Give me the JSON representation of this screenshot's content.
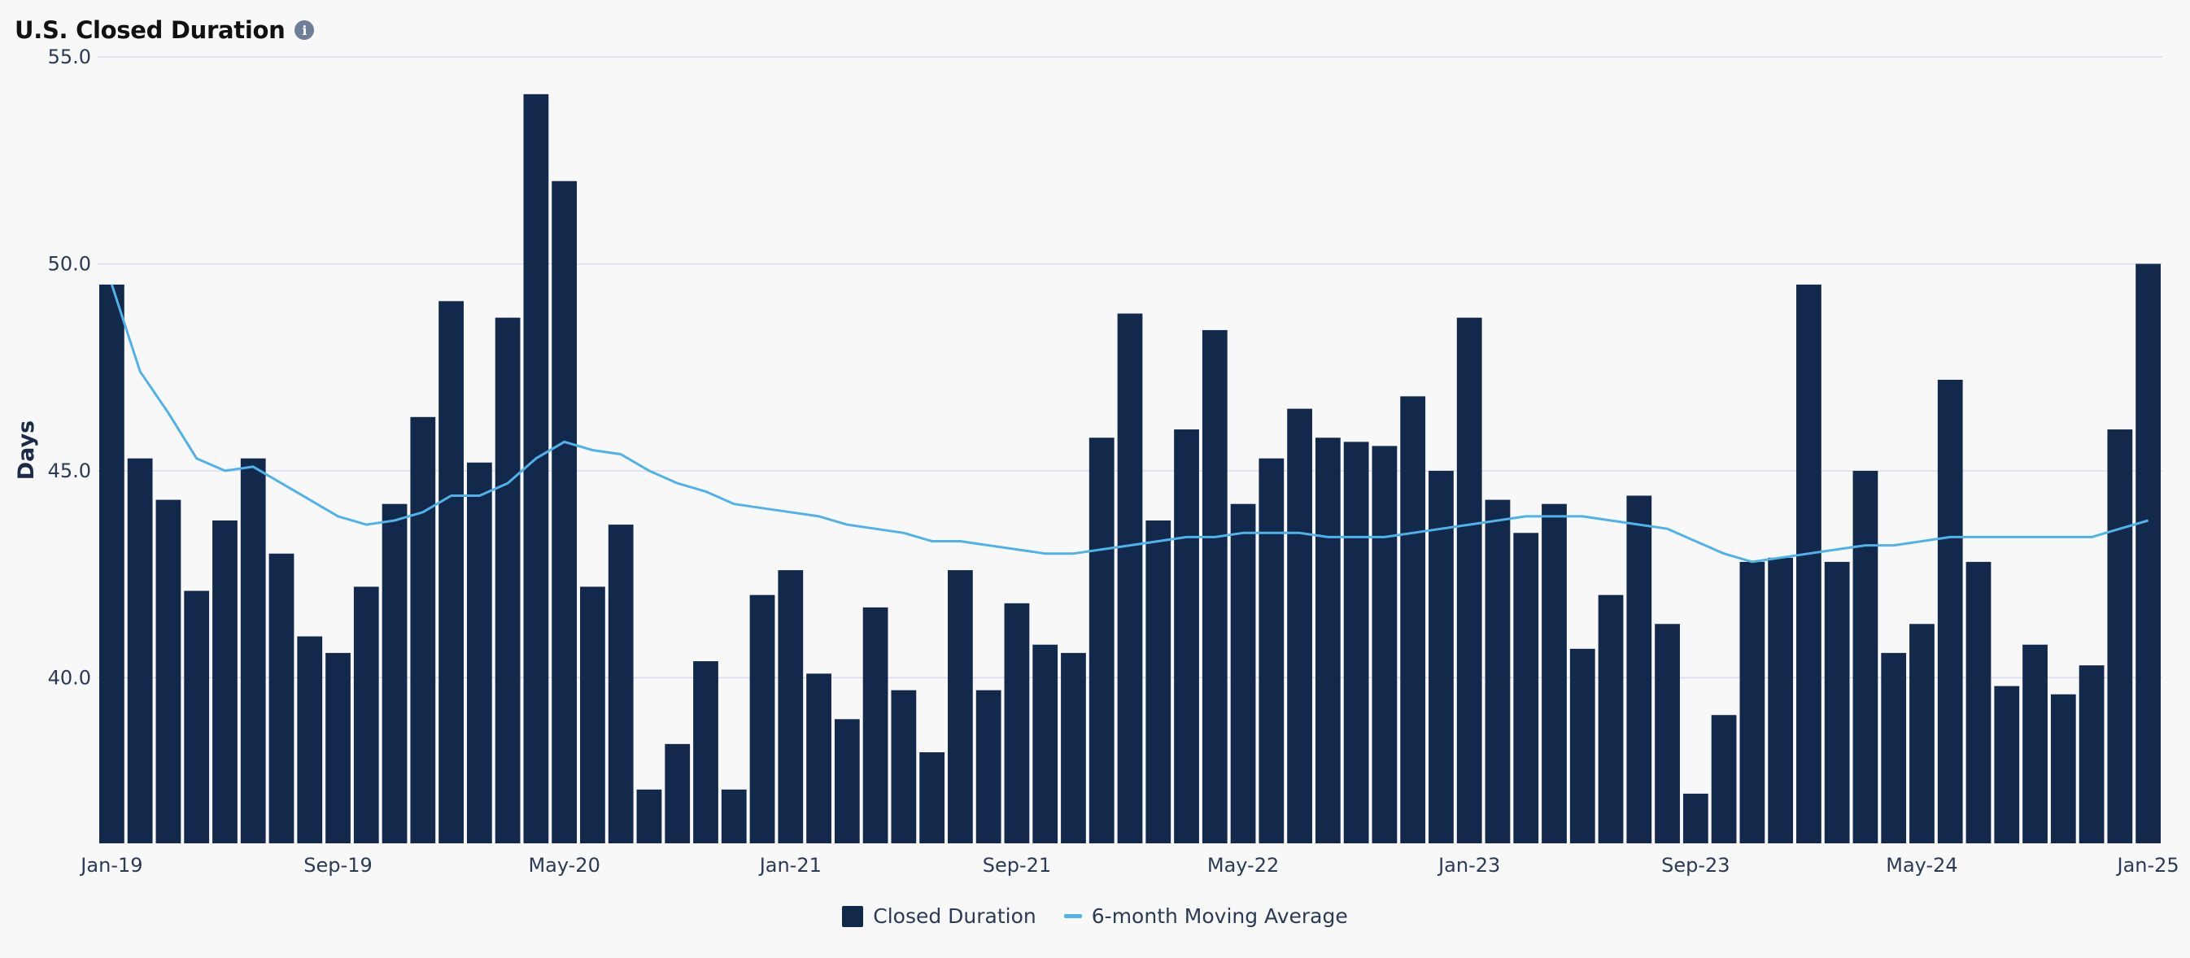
{
  "header": {
    "title": "U.S. Closed Duration",
    "info_icon": "info-icon"
  },
  "colors": {
    "bar": "#13294b",
    "line": "#4fb3ea",
    "grid": "#d9dcf0",
    "background": "#f8f8f9"
  },
  "chart_data": {
    "type": "bar",
    "title": "U.S. Closed Duration",
    "xlabel": "",
    "ylabel": "Days",
    "ylim": [
      36.0,
      55.0
    ],
    "yticks": [
      "40.0",
      "45.0",
      "50.0",
      "55.0"
    ],
    "xtick_labels": [
      "Jan-19",
      "Sep-19",
      "May-20",
      "Jan-21",
      "Sep-21",
      "May-22",
      "Jan-23",
      "Sep-23",
      "May-24",
      "Jan-25"
    ],
    "grid": true,
    "legend_position": "bottom-center",
    "categories": [
      "Jan-19",
      "Feb-19",
      "Mar-19",
      "Apr-19",
      "May-19",
      "Jun-19",
      "Jul-19",
      "Aug-19",
      "Sep-19",
      "Oct-19",
      "Nov-19",
      "Dec-19",
      "Jan-20",
      "Feb-20",
      "Mar-20",
      "Apr-20",
      "May-20",
      "Jun-20",
      "Jul-20",
      "Aug-20",
      "Sep-20",
      "Oct-20",
      "Nov-20",
      "Dec-20",
      "Jan-21",
      "Feb-21",
      "Mar-21",
      "Apr-21",
      "May-21",
      "Jun-21",
      "Jul-21",
      "Aug-21",
      "Sep-21",
      "Oct-21",
      "Nov-21",
      "Dec-21",
      "Jan-22",
      "Feb-22",
      "Mar-22",
      "Apr-22",
      "May-22",
      "Jun-22",
      "Jul-22",
      "Aug-22",
      "Sep-22",
      "Oct-22",
      "Nov-22",
      "Dec-22",
      "Jan-23",
      "Feb-23",
      "Mar-23",
      "Apr-23",
      "May-23",
      "Jun-23",
      "Jul-23",
      "Aug-23",
      "Sep-23",
      "Oct-23",
      "Nov-23",
      "Dec-23",
      "Jan-24",
      "Feb-24",
      "Mar-24",
      "Apr-24",
      "May-24",
      "Jun-24",
      "Jul-24",
      "Aug-24",
      "Sep-24",
      "Oct-24",
      "Nov-24",
      "Dec-24",
      "Jan-25"
    ],
    "series": [
      {
        "name": "Closed Duration",
        "type": "bar",
        "values": [
          49.5,
          45.3,
          44.3,
          42.1,
          43.8,
          45.3,
          43.0,
          41.0,
          40.6,
          42.2,
          44.2,
          46.3,
          49.1,
          45.2,
          48.7,
          54.1,
          52.0,
          42.2,
          43.7,
          37.3,
          38.4,
          40.4,
          37.3,
          42.0,
          42.6,
          40.1,
          39.0,
          41.7,
          39.7,
          38.2,
          42.6,
          39.7,
          41.8,
          40.8,
          40.6,
          45.8,
          48.8,
          43.8,
          46.0,
          48.4,
          44.2,
          45.3,
          46.5,
          45.8,
          45.7,
          45.6,
          46.8,
          45.0,
          48.7,
          44.3,
          43.5,
          44.2,
          40.7,
          42.0,
          44.4,
          41.3,
          37.2,
          39.1,
          42.8,
          42.9,
          49.5,
          42.8,
          45.0,
          40.6,
          41.3,
          47.2,
          42.8,
          39.8,
          40.8,
          39.6,
          40.3,
          46.0,
          50.0
        ]
      },
      {
        "name": "6-month Moving Average",
        "type": "line",
        "values": [
          49.5,
          47.4,
          46.4,
          45.3,
          45.0,
          45.1,
          44.7,
          44.3,
          43.9,
          43.7,
          43.8,
          44.0,
          44.4,
          44.4,
          44.7,
          45.3,
          45.7,
          45.5,
          45.4,
          45.0,
          44.7,
          44.5,
          44.2,
          44.1,
          44.0,
          43.9,
          43.7,
          43.6,
          43.5,
          43.3,
          43.3,
          43.2,
          43.1,
          43.0,
          43.0,
          43.1,
          43.2,
          43.3,
          43.4,
          43.4,
          43.5,
          43.5,
          43.5,
          43.4,
          43.4,
          43.4,
          43.5,
          43.6,
          43.7,
          43.8,
          43.9,
          43.9,
          43.9,
          43.8,
          43.7,
          43.6,
          43.3,
          43.0,
          42.8,
          42.9,
          43.0,
          43.1,
          43.2,
          43.2,
          43.3,
          43.4,
          43.4,
          43.4,
          43.4,
          43.4,
          43.4,
          43.6,
          43.8
        ]
      }
    ]
  },
  "legend": [
    {
      "label": "Closed Duration",
      "swatch": "bar"
    },
    {
      "label": "6-month Moving Average",
      "swatch": "line"
    }
  ]
}
